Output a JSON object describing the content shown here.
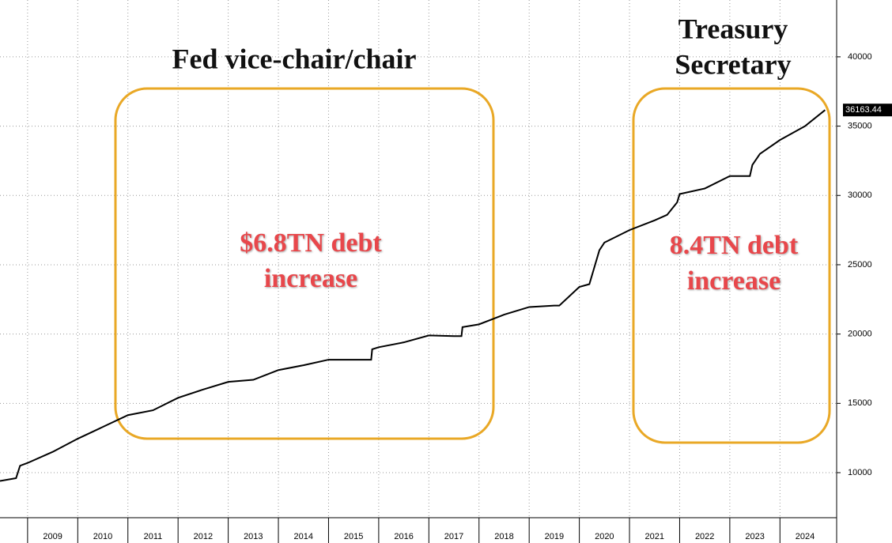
{
  "chart_data": {
    "type": "line",
    "annotations": [
      "Fed vice-chair/chair",
      "Treasury",
      "Secretary",
      "$6.8TN debt",
      "increase",
      "8.4TN debt",
      "increase"
    ],
    "x": [
      2008.45,
      2008.77,
      2008.85,
      2009.0,
      2009.5,
      2010.0,
      2010.5,
      2011.0,
      2011.5,
      2012.0,
      2012.5,
      2013.0,
      2013.5,
      2014.0,
      2014.5,
      2015.0,
      2015.5,
      2015.85,
      2015.87,
      2016.0,
      2016.5,
      2017.0,
      2017.5,
      2017.65,
      2017.67,
      2018.0,
      2018.5,
      2019.0,
      2019.5,
      2019.6,
      2020.0,
      2020.2,
      2020.4,
      2020.5,
      2021.0,
      2021.5,
      2021.75,
      2021.95,
      2022.0,
      2022.5,
      2023.0,
      2023.4,
      2023.45,
      2023.6,
      2024.0,
      2024.5,
      2024.9
    ],
    "values": [
      9400,
      9600,
      10500,
      10700,
      11500,
      12450,
      13300,
      14150,
      14500,
      15400,
      16000,
      16550,
      16700,
      17400,
      17750,
      18150,
      18150,
      18150,
      18900,
      19050,
      19400,
      19900,
      19850,
      19850,
      20500,
      20700,
      21400,
      21950,
      22050,
      22050,
      23400,
      23600,
      26050,
      26600,
      27500,
      28200,
      28600,
      29500,
      30100,
      30500,
      31400,
      31400,
      32200,
      33000,
      34000,
      35000,
      36163.44
    ],
    "color": "#000000",
    "xlim": [
      2008.45,
      2025.13
    ],
    "xticks": [
      2009,
      2010,
      2011,
      2012,
      2013,
      2014,
      2015,
      2016,
      2017,
      2018,
      2019,
      2020,
      2021,
      2022,
      2023,
      2024
    ],
    "ylim": [
      6750,
      44100
    ],
    "yticks": [
      10000,
      15000,
      20000,
      25000,
      30000,
      35000,
      40000
    ],
    "grid": true
  }
}
